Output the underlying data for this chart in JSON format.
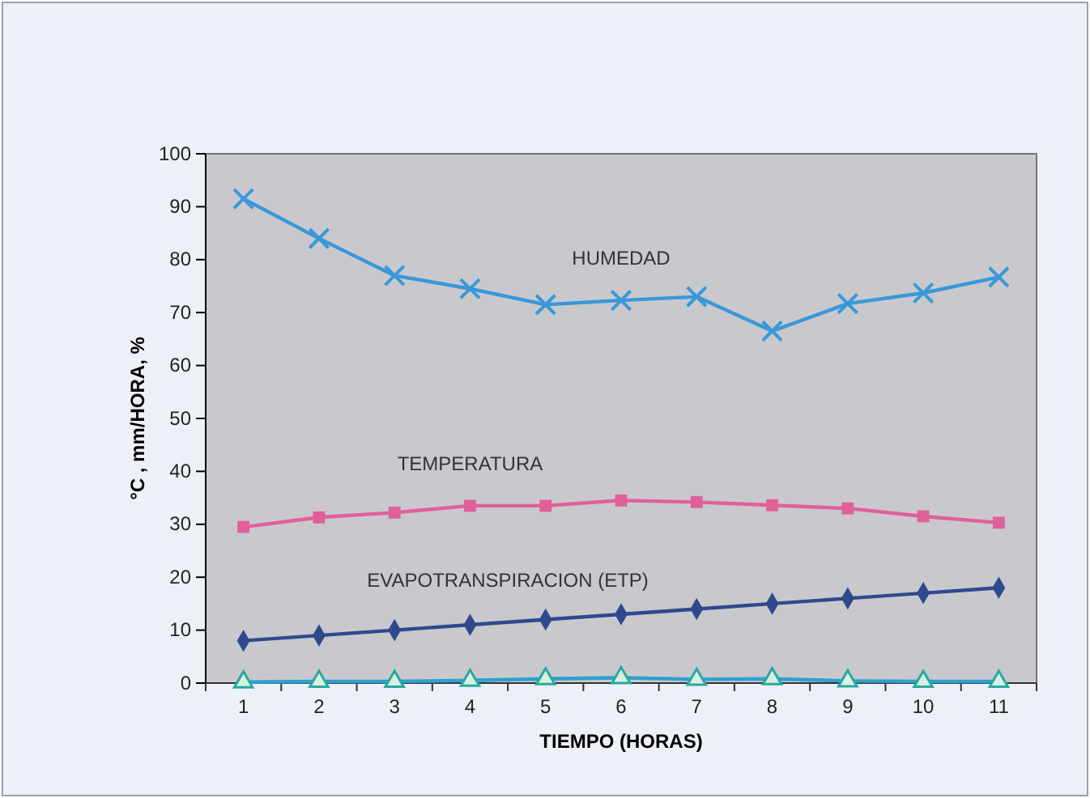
{
  "chart_data": {
    "type": "line",
    "xlabel": "TIEMPO (HORAS)",
    "ylabel": "°C , mm/HORA, %",
    "categories": [
      "1",
      "2",
      "3",
      "4",
      "5",
      "6",
      "7",
      "8",
      "9",
      "10",
      "11"
    ],
    "ylim": [
      0,
      100
    ],
    "yticks": [
      0,
      10,
      20,
      30,
      40,
      50,
      60,
      70,
      80,
      90,
      100
    ],
    "series": [
      {
        "name": "HUMEDAD",
        "color": "#3a98d8",
        "marker": "cross",
        "values": [
          91.5,
          84,
          77,
          74.5,
          71.5,
          72.3,
          73,
          66.5,
          71.7,
          73.7,
          76.7
        ]
      },
      {
        "name": "TEMPERATURA",
        "color": "#e0609a",
        "marker": "square",
        "values": [
          29.5,
          31.3,
          32.2,
          33.5,
          33.5,
          34.5,
          34.2,
          33.6,
          33,
          31.5,
          30.3
        ]
      },
      {
        "name": "EVAPOTRANSPIRACION (ETP)",
        "color": "#2e4a8c",
        "marker": "diamond",
        "values": [
          8,
          9,
          10,
          11,
          12,
          13,
          14,
          15,
          16,
          17,
          18
        ]
      },
      {
        "color": "#2f9fd0",
        "marker": "triangle",
        "values": [
          0.2,
          0.3,
          0.3,
          0.5,
          0.8,
          1,
          0.7,
          0.8,
          0.4,
          0.3,
          0.3
        ]
      }
    ]
  }
}
